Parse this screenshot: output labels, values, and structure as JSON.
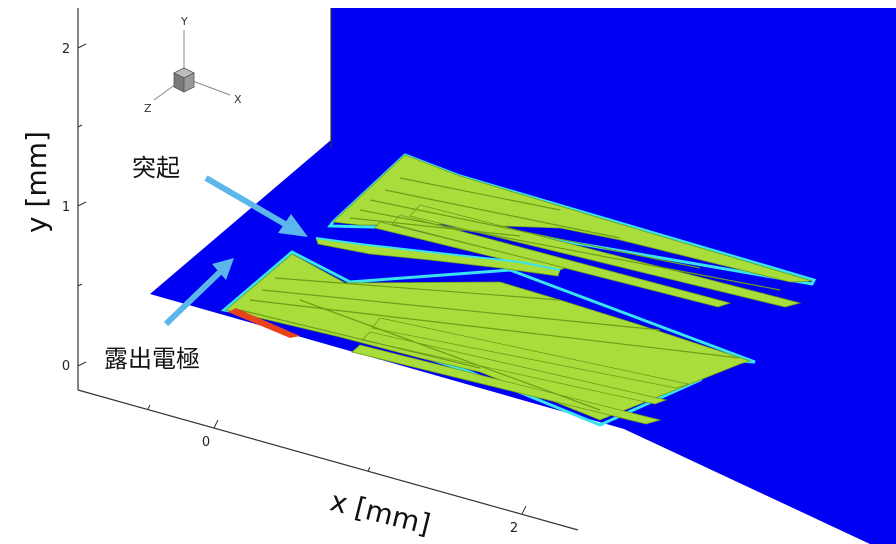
{
  "axes": {
    "y_label": "y [mm]",
    "x_label": "x [mm]",
    "y_ticks": [
      "0",
      "1",
      "2"
    ],
    "x_ticks": [
      "0",
      "2"
    ]
  },
  "orientation_triad": {
    "x": "X",
    "y": "Y",
    "z": "Z"
  },
  "annotations": {
    "protrusion": "突起",
    "exposed_electrode": "露出電極"
  },
  "colors": {
    "plane": "#0000f2",
    "streamer": "#a9dd3c",
    "streamer_edge": "#6f9d18",
    "outline": "#39e3f0",
    "arrow": "#5bb6ec",
    "hot": "#e8441c"
  }
}
